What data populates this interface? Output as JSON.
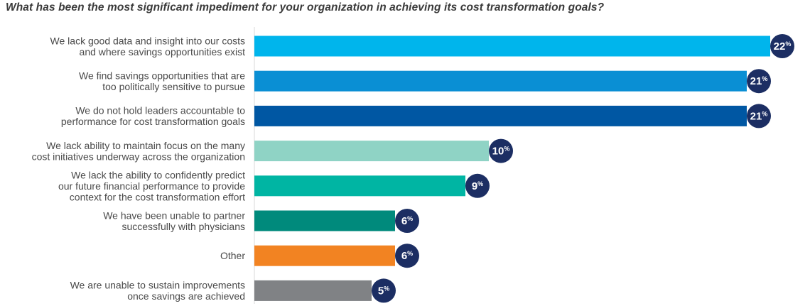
{
  "chart_data": {
    "type": "bar",
    "orientation": "horizontal",
    "title": "What has been the most significant impediment for your organization in achieving its cost transformation goals?",
    "xlim": [
      0,
      22
    ],
    "unit": "%",
    "categories": [
      [
        "We lack good data and insight into our costs",
        "and where savings opportunities exist"
      ],
      [
        "We find savings opportunities that are",
        "too politically sensitive to pursue"
      ],
      [
        "We do not hold leaders accountable to",
        "performance for cost transformation goals"
      ],
      [
        "We lack ability to maintain focus on the many",
        "cost initiatives underway across the organization"
      ],
      [
        "We lack the ability to confidently predict",
        "our future financial performance to provide",
        "context for the cost transformation effort"
      ],
      [
        "We have been unable to partner",
        "successfully with physicians"
      ],
      [
        "Other"
      ],
      [
        "We are unable to sustain improvements",
        "once savings are achieved"
      ]
    ],
    "values": [
      22,
      21,
      21,
      10,
      9,
      6,
      6,
      5
    ],
    "colors": [
      "#00b5ec",
      "#0a8fd4",
      "#0057a3",
      "#8fd3c5",
      "#00b5a3",
      "#008a7c",
      "#f28322",
      "#808285"
    ],
    "badge_color": "#1c2e63",
    "grid": false,
    "legend": "none"
  }
}
